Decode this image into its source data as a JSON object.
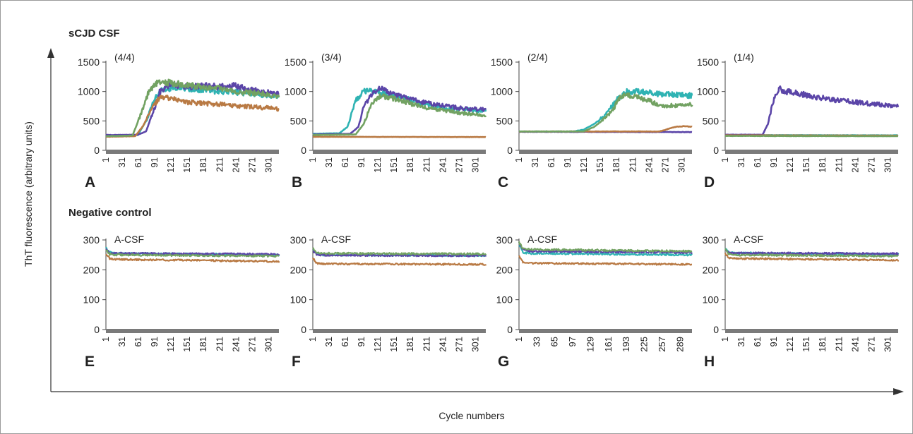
{
  "figure": {
    "section_positive": "sCJD CSF",
    "section_negative": "Negative control",
    "ylabel": "ThT fluorescence (arbitrary units)",
    "xlabel": "Cycle numbers"
  },
  "colors": {
    "teal": "#2fb3b3",
    "purple": "#5b45a8",
    "orange": "#b97a44",
    "green": "#72a262",
    "baseline_bar": "#7a7a7a",
    "frame": "#999999"
  },
  "chart_data": [
    {
      "type": "line",
      "panel": "A",
      "annotation": "(4/4)",
      "xlabel": "",
      "ylabel": "",
      "xlim": [
        1,
        320
      ],
      "ylim": [
        0,
        1500
      ],
      "yticks": [
        0,
        500,
        1000,
        1500
      ],
      "xticks": [
        "1",
        "31",
        "61",
        "91",
        "121",
        "151",
        "181",
        "211",
        "241",
        "271",
        "301"
      ],
      "series": [
        {
          "color": "teal",
          "x": [
            1,
            60,
            75,
            90,
            100,
            120,
            150,
            180,
            210,
            240,
            270,
            300,
            320
          ],
          "y": [
            250,
            260,
            500,
            850,
            1000,
            1050,
            1050,
            1020,
            1000,
            990,
            960,
            940,
            930
          ]
        },
        {
          "color": "purple",
          "x": [
            1,
            60,
            75,
            90,
            100,
            120,
            150,
            180,
            210,
            240,
            270,
            300,
            320
          ],
          "y": [
            260,
            265,
            320,
            700,
            1000,
            1100,
            1080,
            1100,
            1080,
            1100,
            1020,
            980,
            950
          ]
        },
        {
          "color": "orange",
          "x": [
            1,
            55,
            70,
            85,
            100,
            120,
            150,
            180,
            210,
            240,
            270,
            300,
            320
          ],
          "y": [
            230,
            240,
            420,
            700,
            900,
            880,
            820,
            800,
            780,
            760,
            740,
            720,
            700
          ]
        },
        {
          "color": "green",
          "x": [
            1,
            50,
            65,
            80,
            95,
            120,
            150,
            180,
            210,
            240,
            270,
            300,
            320
          ],
          "y": [
            240,
            250,
            600,
            1000,
            1150,
            1150,
            1100,
            1080,
            1060,
            1000,
            980,
            950,
            900
          ]
        }
      ]
    },
    {
      "type": "line",
      "panel": "B",
      "annotation": "(3/4)",
      "xlabel": "",
      "ylabel": "",
      "xlim": [
        1,
        320
      ],
      "ylim": [
        0,
        1500
      ],
      "yticks": [
        0,
        500,
        1000,
        1500
      ],
      "xticks": [
        "1",
        "31",
        "61",
        "91",
        "121",
        "151",
        "181",
        "211",
        "241",
        "271",
        "301"
      ],
      "series": [
        {
          "color": "teal",
          "x": [
            1,
            50,
            65,
            80,
            95,
            110,
            140,
            180,
            210,
            240,
            270,
            300,
            320
          ],
          "y": [
            280,
            290,
            400,
            850,
            1000,
            1000,
            950,
            860,
            780,
            720,
            700,
            680,
            660
          ]
        },
        {
          "color": "purple",
          "x": [
            1,
            70,
            85,
            95,
            110,
            125,
            150,
            180,
            210,
            240,
            270,
            300,
            320
          ],
          "y": [
            270,
            280,
            400,
            750,
            950,
            1050,
            950,
            870,
            810,
            760,
            720,
            700,
            690
          ]
        },
        {
          "color": "orange",
          "x": [
            1,
            320
          ],
          "y": [
            230,
            225
          ]
        },
        {
          "color": "green",
          "x": [
            1,
            80,
            95,
            110,
            125,
            150,
            180,
            210,
            240,
            270,
            300,
            320
          ],
          "y": [
            260,
            270,
            450,
            800,
            920,
            880,
            800,
            730,
            680,
            640,
            610,
            590
          ]
        }
      ]
    },
    {
      "type": "line",
      "panel": "C",
      "annotation": "(2/4)",
      "xlabel": "",
      "ylabel": "",
      "xlim": [
        1,
        320
      ],
      "ylim": [
        0,
        1500
      ],
      "yticks": [
        0,
        500,
        1000,
        1500
      ],
      "xticks": [
        "1",
        "31",
        "61",
        "91",
        "121",
        "151",
        "181",
        "211",
        "241",
        "271",
        "301"
      ],
      "series": [
        {
          "color": "teal",
          "x": [
            1,
            100,
            120,
            140,
            160,
            180,
            200,
            220,
            240,
            260,
            280,
            300,
            320
          ],
          "y": [
            320,
            320,
            350,
            450,
            600,
            850,
            1000,
            1000,
            980,
            960,
            950,
            940,
            930
          ]
        },
        {
          "color": "purple",
          "x": [
            1,
            320
          ],
          "y": [
            315,
            310
          ]
        },
        {
          "color": "orange",
          "x": [
            1,
            260,
            275,
            290,
            305,
            320
          ],
          "y": [
            320,
            320,
            360,
            400,
            410,
            400
          ]
        },
        {
          "color": "green",
          "x": [
            1,
            120,
            140,
            160,
            175,
            185,
            200,
            220,
            240,
            255,
            270,
            290,
            320
          ],
          "y": [
            320,
            320,
            400,
            550,
            700,
            880,
            950,
            900,
            850,
            780,
            750,
            760,
            770
          ]
        }
      ]
    },
    {
      "type": "line",
      "panel": "D",
      "annotation": "(1/4)",
      "xlabel": "",
      "ylabel": "",
      "xlim": [
        1,
        320
      ],
      "ylim": [
        0,
        1500
      ],
      "yticks": [
        0,
        500,
        1000,
        1500
      ],
      "xticks": [
        "1",
        "31",
        "61",
        "91",
        "121",
        "151",
        "181",
        "211",
        "241",
        "271",
        "301"
      ],
      "series": [
        {
          "color": "teal",
          "x": [
            1,
            320
          ],
          "y": [
            260,
            255
          ]
        },
        {
          "color": "purple",
          "x": [
            1,
            70,
            80,
            90,
            100,
            110,
            130,
            160,
            200,
            240,
            280,
            320
          ],
          "y": [
            265,
            265,
            450,
            850,
            1050,
            1000,
            980,
            920,
            860,
            820,
            780,
            760
          ]
        },
        {
          "color": "orange",
          "x": [
            1,
            320
          ],
          "y": [
            255,
            250
          ]
        },
        {
          "color": "green",
          "x": [
            1,
            320
          ],
          "y": [
            245,
            240
          ]
        }
      ]
    },
    {
      "type": "line",
      "panel": "E",
      "annotation": "A-CSF",
      "xlabel": "",
      "ylabel": "",
      "xlim": [
        1,
        320
      ],
      "ylim": [
        0,
        300
      ],
      "yticks": [
        0,
        100,
        200,
        300
      ],
      "xticks": [
        "1",
        "31",
        "61",
        "91",
        "121",
        "151",
        "181",
        "211",
        "241",
        "271",
        "301"
      ],
      "series": [
        {
          "color": "teal",
          "x": [
            1,
            8,
            20,
            320
          ],
          "y": [
            275,
            258,
            255,
            250
          ]
        },
        {
          "color": "purple",
          "x": [
            1,
            8,
            20,
            320
          ],
          "y": [
            270,
            256,
            255,
            252
          ]
        },
        {
          "color": "orange",
          "x": [
            1,
            8,
            20,
            320
          ],
          "y": [
            255,
            238,
            235,
            228
          ]
        },
        {
          "color": "green",
          "x": [
            1,
            8,
            20,
            320
          ],
          "y": [
            268,
            252,
            250,
            246
          ]
        }
      ]
    },
    {
      "type": "line",
      "panel": "F",
      "annotation": "A-CSF",
      "xlabel": "",
      "ylabel": "",
      "xlim": [
        1,
        320
      ],
      "ylim": [
        0,
        300
      ],
      "yticks": [
        0,
        100,
        200,
        300
      ],
      "xticks": [
        "1",
        "31",
        "61",
        "91",
        "121",
        "151",
        "181",
        "211",
        "241",
        "271",
        "301"
      ],
      "series": [
        {
          "color": "teal",
          "x": [
            1,
            8,
            20,
            320
          ],
          "y": [
            268,
            252,
            250,
            248
          ]
        },
        {
          "color": "purple",
          "x": [
            1,
            8,
            20,
            320
          ],
          "y": [
            265,
            251,
            249,
            247
          ]
        },
        {
          "color": "orange",
          "x": [
            1,
            8,
            20,
            320
          ],
          "y": [
            240,
            222,
            220,
            218
          ]
        },
        {
          "color": "green",
          "x": [
            1,
            8,
            20,
            320
          ],
          "y": [
            272,
            257,
            255,
            253
          ]
        }
      ]
    },
    {
      "type": "line",
      "panel": "G",
      "annotation": "A-CSF",
      "xlabel": "",
      "ylabel": "",
      "xlim": [
        1,
        310
      ],
      "ylim": [
        0,
        300
      ],
      "yticks": [
        0,
        100,
        200,
        300
      ],
      "xticks": [
        "1",
        "33",
        "65",
        "97",
        "129",
        "161",
        "193",
        "225",
        "257",
        "289"
      ],
      "series": [
        {
          "color": "teal",
          "x": [
            1,
            8,
            20,
            310
          ],
          "y": [
            285,
            258,
            255,
            250
          ]
        },
        {
          "color": "purple",
          "x": [
            1,
            8,
            20,
            310
          ],
          "y": [
            290,
            268,
            262,
            258
          ]
        },
        {
          "color": "orange",
          "x": [
            1,
            8,
            20,
            310
          ],
          "y": [
            245,
            225,
            222,
            218
          ]
        },
        {
          "color": "green",
          "x": [
            1,
            8,
            20,
            310
          ],
          "y": [
            292,
            272,
            268,
            262
          ]
        }
      ]
    },
    {
      "type": "line",
      "panel": "H",
      "annotation": "A-CSF",
      "xlabel": "",
      "ylabel": "",
      "xlim": [
        1,
        320
      ],
      "ylim": [
        0,
        300
      ],
      "yticks": [
        0,
        100,
        200,
        300
      ],
      "xticks": [
        "1",
        "31",
        "61",
        "91",
        "121",
        "151",
        "181",
        "211",
        "241",
        "271",
        "301"
      ],
      "series": [
        {
          "color": "teal",
          "x": [
            1,
            8,
            20,
            320
          ],
          "y": [
            270,
            258,
            256,
            252
          ]
        },
        {
          "color": "purple",
          "x": [
            1,
            8,
            20,
            320
          ],
          "y": [
            268,
            257,
            256,
            254
          ]
        },
        {
          "color": "orange",
          "x": [
            1,
            8,
            20,
            320
          ],
          "y": [
            255,
            240,
            238,
            232
          ]
        },
        {
          "color": "green",
          "x": [
            1,
            8,
            20,
            320
          ],
          "y": [
            268,
            252,
            250,
            246
          ]
        }
      ]
    }
  ]
}
